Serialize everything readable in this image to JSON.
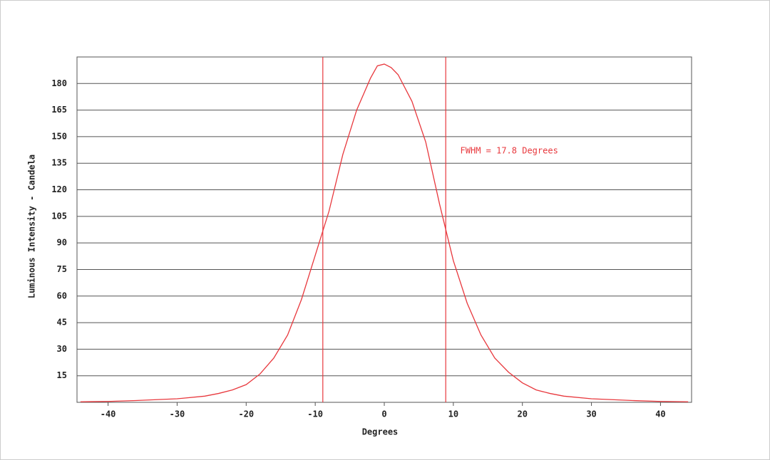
{
  "chart_data": {
    "type": "line",
    "x_label": "Degrees",
    "y_label": "Luminous Intensity - Candela",
    "annotation": {
      "text": "FWHM = 17.8 Degrees",
      "x": 11,
      "y": 142
    },
    "fwhm_lines": [
      -8.9,
      8.9
    ],
    "x": [
      -44,
      -40,
      -36,
      -30,
      -26,
      -24,
      -22,
      -20,
      -18,
      -16,
      -14,
      -12,
      -10,
      -8,
      -6,
      -4,
      -2,
      -1,
      0,
      1,
      2,
      4,
      6,
      8,
      10,
      12,
      14,
      16,
      18,
      20,
      22,
      24,
      26,
      30,
      36,
      40,
      44
    ],
    "series": [
      {
        "name": "Luminous Intensity",
        "color": "#e8383d",
        "values": [
          0.3,
          0.5,
          1,
          2,
          3.5,
          5,
          7,
          10,
          16,
          25,
          38,
          58,
          83,
          108,
          140,
          165,
          183,
          190,
          191,
          189,
          185,
          170,
          147,
          112,
          80,
          56,
          38,
          25,
          17,
          11,
          7,
          5,
          3.5,
          2,
          1,
          0.5,
          0.3
        ]
      }
    ],
    "xlim": [
      -44.5,
      44.5
    ],
    "ylim": [
      0,
      195
    ],
    "xticks": [
      -40,
      -30,
      -20,
      -10,
      0,
      10,
      20,
      30,
      40
    ],
    "yticks": [
      15,
      30,
      45,
      60,
      75,
      90,
      105,
      120,
      135,
      150,
      165,
      180
    ],
    "grid": true
  }
}
